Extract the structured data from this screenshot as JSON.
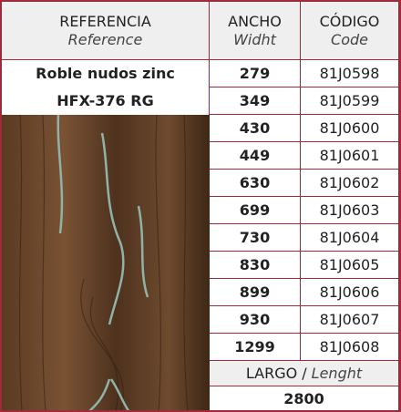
{
  "header": {
    "reference": "REFERENCIA",
    "reference_en": "Reference",
    "width": "ANCHO",
    "width_en": "Widht",
    "code": "CÓDIGO",
    "code_en": "Code"
  },
  "product": {
    "name": [
      "Roble nudos zinc",
      "HFX-376 RG"
    ]
  },
  "table": {
    "rows": [
      [
        279,
        "81J0598"
      ],
      [
        349,
        "81J0599"
      ],
      [
        430,
        "81J0600"
      ],
      [
        449,
        "81J0601"
      ],
      [
        630,
        "81J0602"
      ],
      [
        699,
        "81J0603"
      ],
      [
        730,
        "81J0604"
      ],
      [
        830,
        "81J0605"
      ],
      [
        899,
        "81J0606"
      ],
      [
        930,
        "81J0607"
      ],
      [
        1299,
        "81J0608"
      ]
    ]
  },
  "length": {
    "label": "LARGO /",
    "label_en": "Lenght",
    "value": 2800
  }
}
